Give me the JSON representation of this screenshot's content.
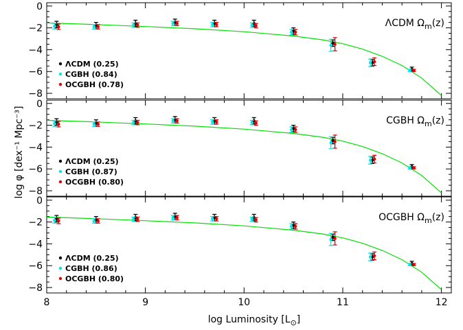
{
  "figure": {
    "xlabel": "log Luminosity [L",
    "xlabel_sub": "⊙",
    "ylabel": "log φ [dex⁻¹ Mpc⁻³]"
  },
  "colors": {
    "lcdm": "#000000",
    "cgbh": "#00e5e5",
    "ocgbh": "#e00000",
    "model": "#00e000"
  },
  "chart_data": [
    {
      "type": "scatter",
      "title": "ΛCDM Ω",
      "title_sub": "m",
      "title_tail": "(z)",
      "xlim": [
        8,
        12.1
      ],
      "ylim": [
        -8.5,
        0.3
      ],
      "x_ticks": [
        "8",
        "9",
        "10",
        "11",
        "12"
      ],
      "y_ticks": [
        "0",
        "−2",
        "−4",
        "−6",
        "−8"
      ],
      "legend": [
        {
          "label": "ΛCDM (0.25)",
          "color": "#000000"
        },
        {
          "label": "CGBH (0.84)",
          "color": "#00e5e5"
        },
        {
          "label": "OCGBH (0.78)",
          "color": "#e00000"
        }
      ],
      "series": [
        {
          "name": "ΛCDM (0.25)",
          "points": [
            {
              "x": 8.1,
              "y": -1.7,
              "err": 0.3
            },
            {
              "x": 8.5,
              "y": -1.8,
              "err": 0.3
            },
            {
              "x": 8.9,
              "y": -1.6,
              "err": 0.3
            },
            {
              "x": 9.3,
              "y": -1.5,
              "err": 0.3
            },
            {
              "x": 9.7,
              "y": -1.6,
              "err": 0.3
            },
            {
              "x": 10.1,
              "y": -1.6,
              "err": 0.3
            },
            {
              "x": 10.5,
              "y": -2.3,
              "err": 0.3
            },
            {
              "x": 10.9,
              "y": -3.4,
              "err": 0.3
            },
            {
              "x": 11.3,
              "y": -5.2,
              "err": 0.3
            },
            {
              "x": 11.7,
              "y": -5.8,
              "err": 0.2
            }
          ]
        },
        {
          "name": "CGBH (0.84)",
          "points": [
            {
              "x": 8.1,
              "y": -1.85,
              "err": 0.25
            },
            {
              "x": 8.5,
              "y": -1.9,
              "err": 0.2
            },
            {
              "x": 8.9,
              "y": -1.75,
              "err": 0.2
            },
            {
              "x": 9.3,
              "y": -1.6,
              "err": 0.2
            },
            {
              "x": 9.7,
              "y": -1.7,
              "err": 0.2
            },
            {
              "x": 10.1,
              "y": -1.75,
              "err": 0.2
            },
            {
              "x": 10.5,
              "y": -2.4,
              "err": 0.25
            },
            {
              "x": 10.9,
              "y": -3.6,
              "err": 0.55
            },
            {
              "x": 11.3,
              "y": -5.2,
              "err": 0.35
            },
            {
              "x": 11.7,
              "y": -5.9,
              "err": 0.1
            }
          ]
        },
        {
          "name": "OCGBH (0.78)",
          "points": [
            {
              "x": 8.1,
              "y": -1.9,
              "err": 0.25
            },
            {
              "x": 8.5,
              "y": -1.9,
              "err": 0.2
            },
            {
              "x": 8.9,
              "y": -1.75,
              "err": 0.2
            },
            {
              "x": 9.3,
              "y": -1.6,
              "err": 0.2
            },
            {
              "x": 9.7,
              "y": -1.7,
              "err": 0.2
            },
            {
              "x": 10.1,
              "y": -1.8,
              "err": 0.2
            },
            {
              "x": 10.5,
              "y": -2.4,
              "err": 0.25
            },
            {
              "x": 10.9,
              "y": -3.5,
              "err": 0.6
            },
            {
              "x": 11.3,
              "y": -5.1,
              "err": 0.35
            },
            {
              "x": 11.7,
              "y": -5.9,
              "err": 0.1
            }
          ]
        }
      ],
      "model_curve": {
        "x": [
          8.0,
          8.5,
          9.0,
          9.5,
          10.0,
          10.5,
          10.8,
          11.0,
          11.2,
          11.4,
          11.6,
          11.8,
          12.0
        ],
        "y": [
          -1.55,
          -1.7,
          -1.88,
          -2.08,
          -2.35,
          -2.75,
          -3.1,
          -3.45,
          -3.95,
          -4.6,
          -5.45,
          -6.6,
          -8.2
        ]
      }
    },
    {
      "type": "scatter",
      "title": "CGBH Ω",
      "title_sub": "m",
      "title_tail": "(z)",
      "xlim": [
        8,
        12.1
      ],
      "ylim": [
        -8.5,
        0.3
      ],
      "x_ticks": [
        "8",
        "9",
        "10",
        "11",
        "12"
      ],
      "y_ticks": [
        "0",
        "−2",
        "−4",
        "−6",
        "−8"
      ],
      "legend": [
        {
          "label": "ΛCDM (0.25)",
          "color": "#000000"
        },
        {
          "label": "CGBH (0.87)",
          "color": "#00e5e5"
        },
        {
          "label": "OCGBH (0.80)",
          "color": "#e00000"
        }
      ],
      "series": [
        {
          "name": "ΛCDM (0.25)",
          "points": [
            {
              "x": 8.1,
              "y": -1.7,
              "err": 0.3
            },
            {
              "x": 8.5,
              "y": -1.8,
              "err": 0.3
            },
            {
              "x": 8.9,
              "y": -1.6,
              "err": 0.3
            },
            {
              "x": 9.3,
              "y": -1.5,
              "err": 0.3
            },
            {
              "x": 9.7,
              "y": -1.6,
              "err": 0.3
            },
            {
              "x": 10.1,
              "y": -1.6,
              "err": 0.3
            },
            {
              "x": 10.5,
              "y": -2.3,
              "err": 0.3
            },
            {
              "x": 10.9,
              "y": -3.4,
              "err": 0.3
            },
            {
              "x": 11.3,
              "y": -5.2,
              "err": 0.3
            },
            {
              "x": 11.7,
              "y": -5.8,
              "err": 0.2
            }
          ]
        },
        {
          "name": "CGBH (0.87)",
          "points": [
            {
              "x": 8.1,
              "y": -1.85,
              "err": 0.25
            },
            {
              "x": 8.5,
              "y": -1.9,
              "err": 0.2
            },
            {
              "x": 8.9,
              "y": -1.75,
              "err": 0.2
            },
            {
              "x": 9.3,
              "y": -1.6,
              "err": 0.2
            },
            {
              "x": 9.7,
              "y": -1.7,
              "err": 0.2
            },
            {
              "x": 10.1,
              "y": -1.75,
              "err": 0.2
            },
            {
              "x": 10.5,
              "y": -2.4,
              "err": 0.25
            },
            {
              "x": 10.9,
              "y": -3.6,
              "err": 0.55
            },
            {
              "x": 11.3,
              "y": -5.2,
              "err": 0.35
            },
            {
              "x": 11.7,
              "y": -5.9,
              "err": 0.1
            }
          ]
        },
        {
          "name": "OCGBH (0.80)",
          "points": [
            {
              "x": 8.1,
              "y": -1.9,
              "err": 0.25
            },
            {
              "x": 8.5,
              "y": -1.9,
              "err": 0.2
            },
            {
              "x": 8.9,
              "y": -1.75,
              "err": 0.2
            },
            {
              "x": 9.3,
              "y": -1.6,
              "err": 0.2
            },
            {
              "x": 9.7,
              "y": -1.7,
              "err": 0.2
            },
            {
              "x": 10.1,
              "y": -1.8,
              "err": 0.2
            },
            {
              "x": 10.5,
              "y": -2.4,
              "err": 0.25
            },
            {
              "x": 10.9,
              "y": -3.5,
              "err": 0.6
            },
            {
              "x": 11.3,
              "y": -5.1,
              "err": 0.35
            },
            {
              "x": 11.7,
              "y": -5.9,
              "err": 0.1
            }
          ]
        }
      ],
      "model_curve": {
        "x": [
          8.0,
          8.5,
          9.0,
          9.5,
          10.0,
          10.5,
          10.8,
          11.0,
          11.2,
          11.4,
          11.6,
          11.8,
          12.0
        ],
        "y": [
          -1.55,
          -1.7,
          -1.88,
          -2.08,
          -2.35,
          -2.75,
          -3.1,
          -3.45,
          -3.95,
          -4.6,
          -5.45,
          -6.6,
          -8.2
        ]
      }
    },
    {
      "type": "scatter",
      "title": "OCGBH Ω",
      "title_sub": "m",
      "title_tail": "(z)",
      "xlim": [
        8,
        12.1
      ],
      "ylim": [
        -8.5,
        0.3
      ],
      "x_ticks": [
        "8",
        "9",
        "10",
        "11",
        "12"
      ],
      "y_ticks": [
        "0",
        "−2",
        "−4",
        "−6",
        "−8"
      ],
      "legend": [
        {
          "label": "ΛCDM (0.25)",
          "color": "#000000"
        },
        {
          "label": "CGBH (0.86)",
          "color": "#00e5e5"
        },
        {
          "label": "OCGBH (0.80)",
          "color": "#e00000"
        }
      ],
      "series": [
        {
          "name": "ΛCDM (0.25)",
          "points": [
            {
              "x": 8.1,
              "y": -1.7,
              "err": 0.3
            },
            {
              "x": 8.5,
              "y": -1.8,
              "err": 0.3
            },
            {
              "x": 8.9,
              "y": -1.6,
              "err": 0.3
            },
            {
              "x": 9.3,
              "y": -1.5,
              "err": 0.3
            },
            {
              "x": 9.7,
              "y": -1.6,
              "err": 0.3
            },
            {
              "x": 10.1,
              "y": -1.6,
              "err": 0.3
            },
            {
              "x": 10.5,
              "y": -2.3,
              "err": 0.3
            },
            {
              "x": 10.9,
              "y": -3.4,
              "err": 0.3
            },
            {
              "x": 11.3,
              "y": -5.2,
              "err": 0.3
            },
            {
              "x": 11.7,
              "y": -5.8,
              "err": 0.2
            }
          ]
        },
        {
          "name": "CGBH (0.86)",
          "points": [
            {
              "x": 8.1,
              "y": -1.85,
              "err": 0.25
            },
            {
              "x": 8.5,
              "y": -1.9,
              "err": 0.2
            },
            {
              "x": 8.9,
              "y": -1.75,
              "err": 0.2
            },
            {
              "x": 9.3,
              "y": -1.6,
              "err": 0.2
            },
            {
              "x": 9.7,
              "y": -1.7,
              "err": 0.2
            },
            {
              "x": 10.1,
              "y": -1.75,
              "err": 0.2
            },
            {
              "x": 10.5,
              "y": -2.4,
              "err": 0.25
            },
            {
              "x": 10.9,
              "y": -3.6,
              "err": 0.55
            },
            {
              "x": 11.3,
              "y": -5.2,
              "err": 0.35
            },
            {
              "x": 11.7,
              "y": -5.9,
              "err": 0.1
            }
          ]
        },
        {
          "name": "OCGBH (0.80)",
          "points": [
            {
              "x": 8.1,
              "y": -1.9,
              "err": 0.25
            },
            {
              "x": 8.5,
              "y": -1.9,
              "err": 0.2
            },
            {
              "x": 8.9,
              "y": -1.75,
              "err": 0.2
            },
            {
              "x": 9.3,
              "y": -1.6,
              "err": 0.2
            },
            {
              "x": 9.7,
              "y": -1.7,
              "err": 0.2
            },
            {
              "x": 10.1,
              "y": -1.8,
              "err": 0.2
            },
            {
              "x": 10.5,
              "y": -2.4,
              "err": 0.25
            },
            {
              "x": 10.9,
              "y": -3.5,
              "err": 0.6
            },
            {
              "x": 11.3,
              "y": -5.1,
              "err": 0.35
            },
            {
              "x": 11.7,
              "y": -5.9,
              "err": 0.1
            }
          ]
        }
      ],
      "model_curve": {
        "x": [
          8.0,
          8.5,
          9.0,
          9.5,
          10.0,
          10.5,
          10.8,
          11.0,
          11.2,
          11.4,
          11.6,
          11.8,
          12.0
        ],
        "y": [
          -1.55,
          -1.7,
          -1.88,
          -2.08,
          -2.35,
          -2.75,
          -3.1,
          -3.45,
          -3.95,
          -4.6,
          -5.45,
          -6.6,
          -8.2
        ]
      }
    }
  ]
}
